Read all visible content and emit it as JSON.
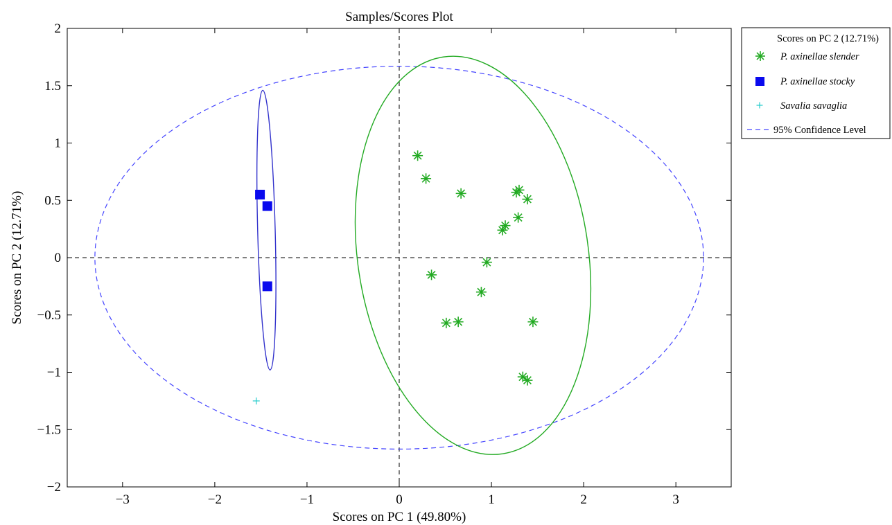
{
  "chart_data": {
    "type": "scatter",
    "title": "Samples/Scores Plot",
    "xlabel": "Scores on PC 1 (49.80%)",
    "ylabel": "Scores on PC 2 (12.71%)",
    "xlim": [
      -3.6,
      3.6
    ],
    "ylim": [
      -2,
      2
    ],
    "xticks": [
      -3,
      -2,
      -1,
      0,
      1,
      2,
      3
    ],
    "xtick_labels": [
      "−3",
      "−2",
      "−1",
      "0",
      "1",
      "2",
      "3"
    ],
    "yticks": [
      -2,
      -1.5,
      -1,
      -0.5,
      0,
      0.5,
      1,
      1.5,
      2
    ],
    "ytick_labels": [
      "−2",
      "−1.5",
      "−1",
      "−0.5",
      "0",
      "0.5",
      "1",
      "1.5",
      "2"
    ],
    "grid": false,
    "legend_position": "outside-top-right",
    "legend_title": "Scores on PC 2 (12.71%)",
    "series": [
      {
        "name": "P. axinellae slender",
        "marker": "asterisk",
        "color": "#22aa22",
        "points": [
          [
            0.2,
            0.89
          ],
          [
            0.29,
            0.69
          ],
          [
            0.67,
            0.56
          ],
          [
            1.3,
            0.59
          ],
          [
            1.27,
            0.57
          ],
          [
            1.39,
            0.51
          ],
          [
            1.29,
            0.35
          ],
          [
            1.15,
            0.28
          ],
          [
            1.12,
            0.24
          ],
          [
            0.95,
            -0.04
          ],
          [
            0.35,
            -0.15
          ],
          [
            0.89,
            -0.3
          ],
          [
            0.51,
            -0.57
          ],
          [
            0.64,
            -0.56
          ],
          [
            1.45,
            -0.56
          ],
          [
            1.34,
            -1.04
          ],
          [
            1.39,
            -1.07
          ]
        ]
      },
      {
        "name": "P. axinellae stocky",
        "marker": "square",
        "color": "#0a0aee",
        "points": [
          [
            -1.51,
            0.55
          ],
          [
            -1.43,
            0.45
          ],
          [
            -1.43,
            -0.25
          ]
        ]
      },
      {
        "name": "Savalia savaglia",
        "marker": "plus",
        "color": "#22cccc",
        "points": [
          [
            -1.55,
            -1.25
          ]
        ]
      },
      {
        "name": "95% Confidence Level",
        "marker": "dashed-line",
        "color": "#4444ff",
        "ellipse": {
          "cx": 0,
          "cy": 0,
          "rx": 3.3,
          "ry": 1.67
        }
      }
    ],
    "group_ellipses": [
      {
        "group": "P. axinellae slender",
        "color": "#22aa22",
        "cx": 0.8,
        "cy": 0.02,
        "rx": 1.25,
        "ry": 1.75,
        "rotation_deg": 8.5
      },
      {
        "group": "P. axinellae stocky",
        "color": "#3333cc",
        "cx": -1.44,
        "cy": 0.24,
        "rx": 0.095,
        "ry": 1.22,
        "rotation_deg": 1.5
      }
    ],
    "reference_lines": {
      "x": 0,
      "y": 0,
      "style": "dashed",
      "color": "#000000"
    }
  }
}
